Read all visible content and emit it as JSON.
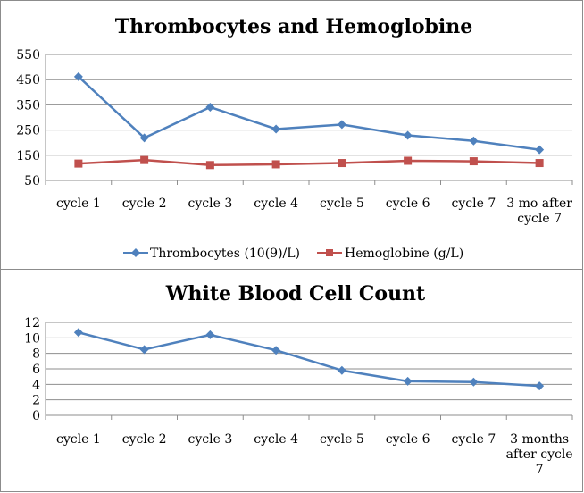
{
  "colors": {
    "thrombocytes": "#4f81bd",
    "hemoglobine": "#c0504d",
    "wbc": "#4f81bd",
    "grid": "#8e8e8e"
  },
  "chart_data": [
    {
      "type": "line",
      "title": "Thrombocytes and Hemoglobine",
      "categories": [
        "cycle 1",
        "cycle 2",
        "cycle 3",
        "cycle 4",
        "cycle 5",
        "cycle 6",
        "cycle 7",
        "3 mo after cycle 7"
      ],
      "category_lines": [
        [
          "cycle 1"
        ],
        [
          "cycle 2"
        ],
        [
          "cycle 3"
        ],
        [
          "cycle 4"
        ],
        [
          "cycle 5"
        ],
        [
          "cycle 6"
        ],
        [
          "cycle 7"
        ],
        [
          "3 mo after",
          "cycle 7"
        ]
      ],
      "yticks": [
        50,
        150,
        250,
        350,
        450,
        550
      ],
      "ylim": [
        50,
        550
      ],
      "grid": true,
      "legend": "bottom",
      "series": [
        {
          "name": "Thrombocytes (10(9)/L)",
          "marker": "diamond",
          "color": "#4f81bd",
          "values": [
            462,
            219,
            341,
            254,
            272,
            229,
            207,
            172
          ]
        },
        {
          "name": "Hemoglobine (g/L)",
          "marker": "square",
          "color": "#c0504d",
          "values": [
            117,
            131,
            111,
            114,
            119,
            128,
            126,
            119
          ]
        }
      ]
    },
    {
      "type": "line",
      "title": "White Blood Cell Count",
      "categories": [
        "cycle 1",
        "cycle 2",
        "cycle 3",
        "cycle 4",
        "cycle 5",
        "cycle 6",
        "cycle 7",
        "3 months after cycle 7"
      ],
      "category_lines": [
        [
          "cycle 1"
        ],
        [
          "cycle 2"
        ],
        [
          "cycle 3"
        ],
        [
          "cycle 4"
        ],
        [
          "cycle 5"
        ],
        [
          "cycle 6"
        ],
        [
          "cycle 7"
        ],
        [
          "3 months",
          "after cycle",
          "7"
        ]
      ],
      "yticks": [
        0,
        2,
        4,
        6,
        8,
        10,
        12
      ],
      "ylim": [
        0,
        12
      ],
      "grid": true,
      "legend": "none",
      "series": [
        {
          "marker": "diamond",
          "color": "#4f81bd",
          "values": [
            10.7,
            8.5,
            10.4,
            8.4,
            5.8,
            4.4,
            4.3,
            3.8
          ]
        }
      ]
    }
  ]
}
